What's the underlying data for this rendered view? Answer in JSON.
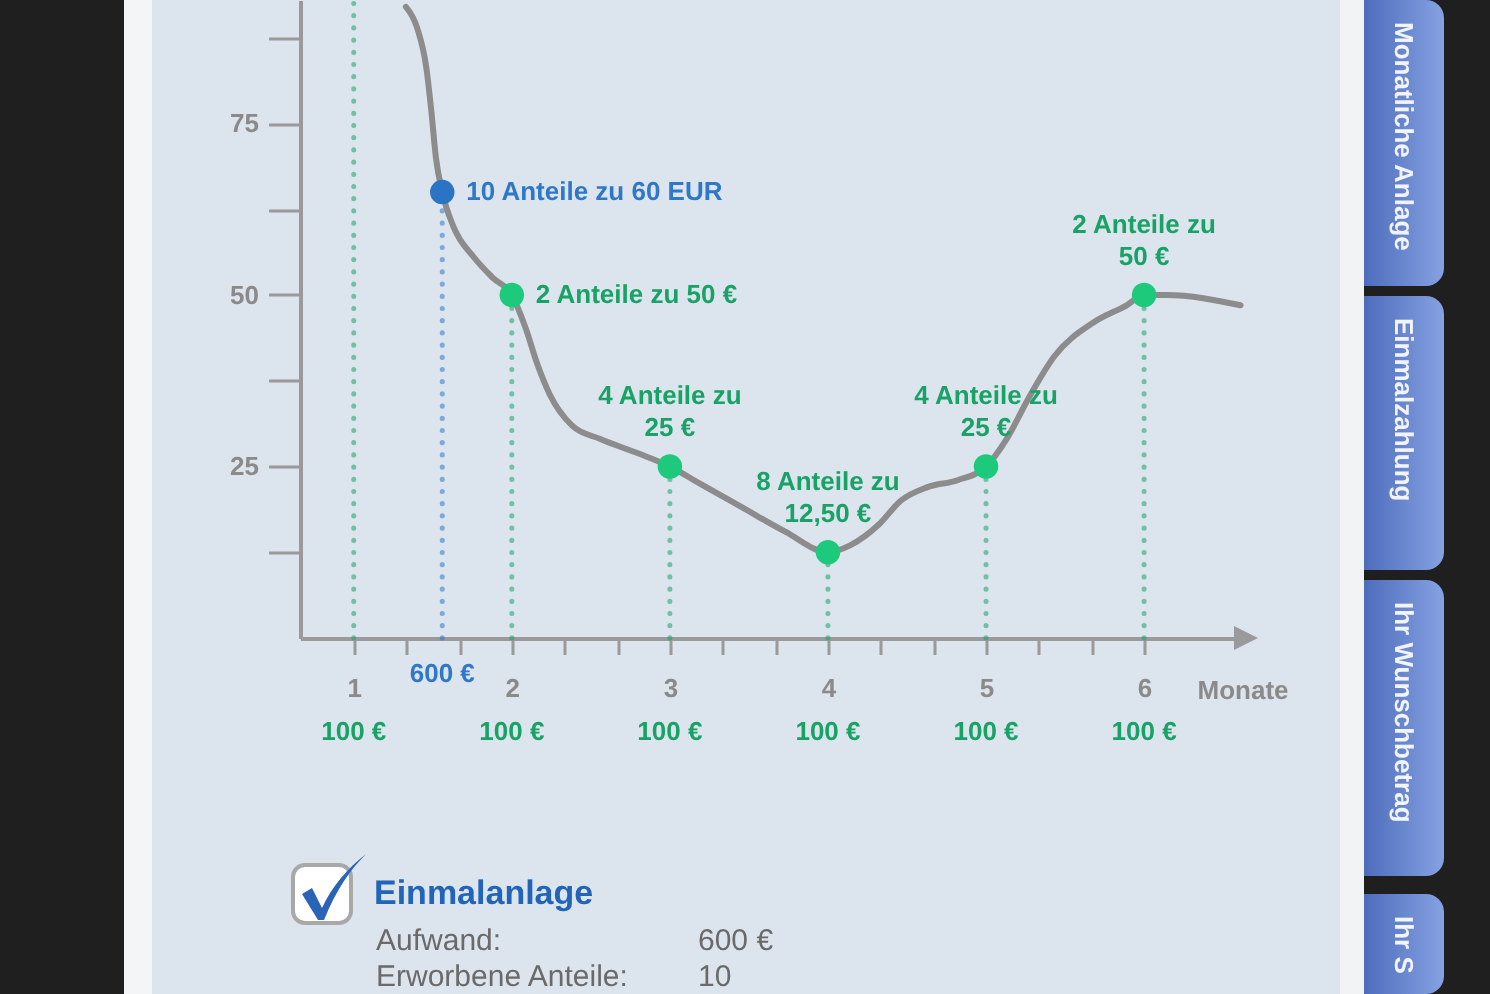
{
  "chart_data": {
    "type": "line",
    "xlabel": "Monate",
    "xlim": [
      0.66,
      6.67
    ],
    "xticks": [
      1,
      {
        "value": 1.33,
        "label": null
      },
      {
        "value": 1.67,
        "label": null
      },
      2,
      {
        "value": 2.33,
        "label": null
      },
      {
        "value": 2.67,
        "label": null
      },
      3,
      {
        "value": 3.33,
        "label": null
      },
      {
        "value": 3.67,
        "label": null
      },
      4,
      {
        "value": 4.33,
        "label": null
      },
      {
        "value": 4.67,
        "label": null
      },
      5,
      {
        "value": 5.33,
        "label": null
      },
      {
        "value": 5.67,
        "label": null
      },
      6
    ],
    "ylim": [
      0,
      93
    ],
    "yticks": [
      {
        "value": 12.5,
        "label": null
      },
      25,
      {
        "value": 37.5,
        "label": null
      },
      50,
      {
        "value": 62.5,
        "label": null
      },
      75,
      {
        "value": 87.5,
        "label": null
      }
    ],
    "series": [
      {
        "color": "#8c8c8c",
        "x": [
          1.33,
          1.4,
          1.46,
          1.49,
          1.52,
          1.56,
          1.63,
          1.76,
          1.88,
          2,
          2.09,
          2.16,
          2.24,
          2.38,
          2.56,
          2.79,
          3,
          3.19,
          3.46,
          3.73,
          4,
          4.14,
          4.32,
          4.46,
          4.63,
          4.82,
          5,
          5.13,
          5.27,
          5.43,
          5.68,
          5.89,
          6,
          6.14,
          6.61
        ],
        "values": [
          92,
          89,
          83,
          77,
          70,
          65,
          60,
          55.5,
          52.5,
          50,
          45,
          40,
          35.5,
          31,
          29,
          27,
          25,
          22.5,
          19,
          15.5,
          12.5,
          13.5,
          16.5,
          20,
          22,
          23,
          25,
          29,
          35,
          41,
          46,
          48.5,
          50,
          50,
          48.5
        ]
      },
      {
        "type": "scatter",
        "marker": "circle",
        "color": "#1dca7c",
        "x": [
          2,
          3,
          4,
          5,
          6
        ],
        "values": [
          50,
          25,
          12.5,
          25,
          50
        ]
      },
      {
        "type": "scatter",
        "marker": "circle",
        "color": "#2b74c4",
        "x": [
          1.56
        ],
        "values": [
          65
        ]
      }
    ],
    "ref_lines": [
      {
        "axis": "x",
        "value": 1,
        "label": "100 €",
        "color": "#18a266",
        "line_style": "dotted"
      },
      {
        "axis": "x",
        "value": 1.56,
        "label": "600 €",
        "color": "#2f78c8",
        "line_style": "dotted"
      },
      {
        "axis": "x",
        "value": 2,
        "label": "100 €",
        "color": "#18a266",
        "line_style": "dotted"
      },
      {
        "axis": "x",
        "value": 3,
        "label": "100 €",
        "color": "#18a266",
        "line_style": "dotted"
      },
      {
        "axis": "x",
        "value": 4,
        "label": "100 €",
        "color": "#18a266",
        "line_style": "dotted"
      },
      {
        "axis": "x",
        "value": 5,
        "label": "100 €",
        "color": "#18a266",
        "line_style": "dotted"
      },
      {
        "axis": "x",
        "value": 6,
        "label": "100 €",
        "color": "#18a266",
        "line_style": "dotted"
      }
    ],
    "annotations": [
      {
        "text": "10 Anteile zu 60 EUR",
        "x": 1.56,
        "y": 65
      },
      {
        "text": "2 Anteile zu 50 €",
        "x": 2,
        "y": 50
      },
      {
        "text": "4 Anteile zu\n25 €",
        "x": 3,
        "y": 25
      },
      {
        "text": "8 Anteile zu\n12,50 €",
        "x": 4,
        "y": 12.5
      },
      {
        "text": "4 Anteile zu\n25 €",
        "x": 5,
        "y": 25
      },
      {
        "text": "2 Anteile zu\n50 €",
        "x": 6,
        "y": 50
      },
      "Monatliche Anlage",
      "Einmalzahlung",
      "Ihr Wunschbetrag",
      "Ihr S",
      "Einmalanlage",
      "Aufwand:",
      "600 €",
      "Erworbene Anteile:",
      "10"
    ]
  }
}
